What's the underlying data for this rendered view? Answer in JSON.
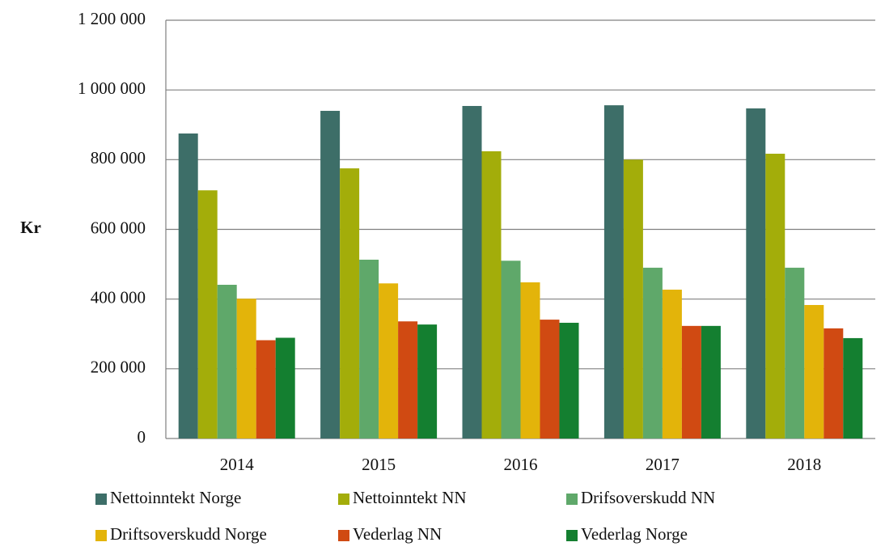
{
  "chart_data": {
    "type": "bar",
    "y_label": "Kr",
    "categories": [
      "2014",
      "2015",
      "2016",
      "2017",
      "2018"
    ],
    "series": [
      {
        "name": "Nettoinntekt Norge",
        "color": "#3d6e68",
        "values": [
          875000,
          940000,
          954000,
          956000,
          947000
        ]
      },
      {
        "name": "Nettoinntekt NN",
        "color": "#a3ad0a",
        "values": [
          712000,
          775000,
          824000,
          800000,
          817000
        ]
      },
      {
        "name": "Drifsoverskudd NN",
        "color": "#5fa86a",
        "values": [
          441000,
          513000,
          510000,
          490000,
          490000
        ]
      },
      {
        "name": "Driftsoverskudd Norge",
        "color": "#e3b40a",
        "values": [
          401000,
          445000,
          448000,
          427000,
          383000
        ]
      },
      {
        "name": "Vederlag NN",
        "color": "#d04a12",
        "values": [
          282000,
          336000,
          341000,
          323000,
          316000
        ]
      },
      {
        "name": "Vederlag Norge",
        "color": "#147f30",
        "values": [
          289000,
          327000,
          332000,
          323000,
          288000
        ]
      }
    ],
    "ylim": [
      0,
      1200000
    ],
    "yticks": [
      0,
      {
        "value": 200000,
        "label": "200 000"
      },
      {
        "value": 400000,
        "label": "400 000"
      },
      {
        "value": 600000,
        "label": "600 000"
      },
      {
        "value": 800000,
        "label": "800 000"
      },
      {
        "value": 1000000,
        "label": "1 000 000"
      },
      {
        "value": 1200000,
        "label": "1 200 000"
      }
    ],
    "grid": true
  }
}
